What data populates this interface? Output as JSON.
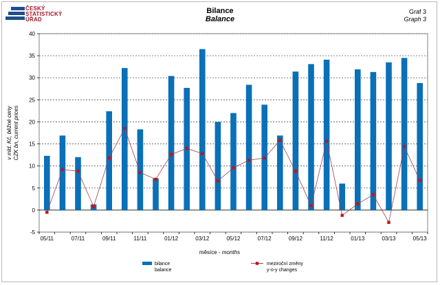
{
  "header": {
    "logo_lines": [
      "ČESKÝ",
      "STATISTICKÝ",
      "ÚŘAD"
    ],
    "title": "Bilance",
    "subtitle": "Balance",
    "graph_label": "Graf 3",
    "graph_label_en": "Graph 3"
  },
  "colors": {
    "bars": "#0a70b8",
    "line": "#a0404a",
    "marker": "#c0141e",
    "grid": "#555555",
    "logo_blue": "#1f4e8c",
    "logo_red": "#a3172a"
  },
  "chart_data": {
    "type": "bar",
    "x": [
      "05/11",
      "06/11",
      "07/11",
      "08/11",
      "09/11",
      "10/11",
      "11/11",
      "12/11",
      "01/12",
      "02/12",
      "03/12",
      "04/12",
      "05/12",
      "06/12",
      "07/12",
      "08/12",
      "09/12",
      "10/12",
      "11/12",
      "12/12",
      "01/13",
      "02/13",
      "03/13",
      "04/13",
      "05/13"
    ],
    "x_tick_labels": [
      "05/11",
      "",
      "07/11",
      "",
      "09/11",
      "",
      "11/11",
      "",
      "01/12",
      "",
      "03/12",
      "",
      "05/12",
      "",
      "07/12",
      "",
      "09/12",
      "",
      "11/12",
      "",
      "01/13",
      "",
      "03/13",
      "",
      "05/13"
    ],
    "series": [
      {
        "name": "bilance",
        "name_en": "balance",
        "kind": "bar",
        "values": [
          12.3,
          16.9,
          12.0,
          1.3,
          22.4,
          32.2,
          18.3,
          7.2,
          30.4,
          27.7,
          36.5,
          20.0,
          22.0,
          28.4,
          23.9,
          16.9,
          31.4,
          33.1,
          34.1,
          6.0,
          31.9,
          31.3,
          33.5,
          34.5,
          28.8
        ]
      },
      {
        "name": "meziroční změny",
        "name_en": "y-o-y changes",
        "kind": "line",
        "values": [
          -0.5,
          9.2,
          8.8,
          0.8,
          11.8,
          18.5,
          8.5,
          7.0,
          12.6,
          14.0,
          12.8,
          6.6,
          9.6,
          11.3,
          11.8,
          15.8,
          8.8,
          1.0,
          15.6,
          -1.2,
          1.4,
          3.5,
          -2.8,
          14.4,
          6.7
        ]
      }
    ],
    "ylabel": "v mld. Kč, běžné ceny",
    "ylabel_en": "CZK bn, current prices",
    "xlabel": "měsíce",
    "xlabel_en": "months",
    "ylim": [
      -5,
      40
    ],
    "yticks": [
      -5,
      0,
      5,
      10,
      15,
      20,
      25,
      30,
      35,
      40
    ],
    "grid": true,
    "legend": "bottom"
  }
}
